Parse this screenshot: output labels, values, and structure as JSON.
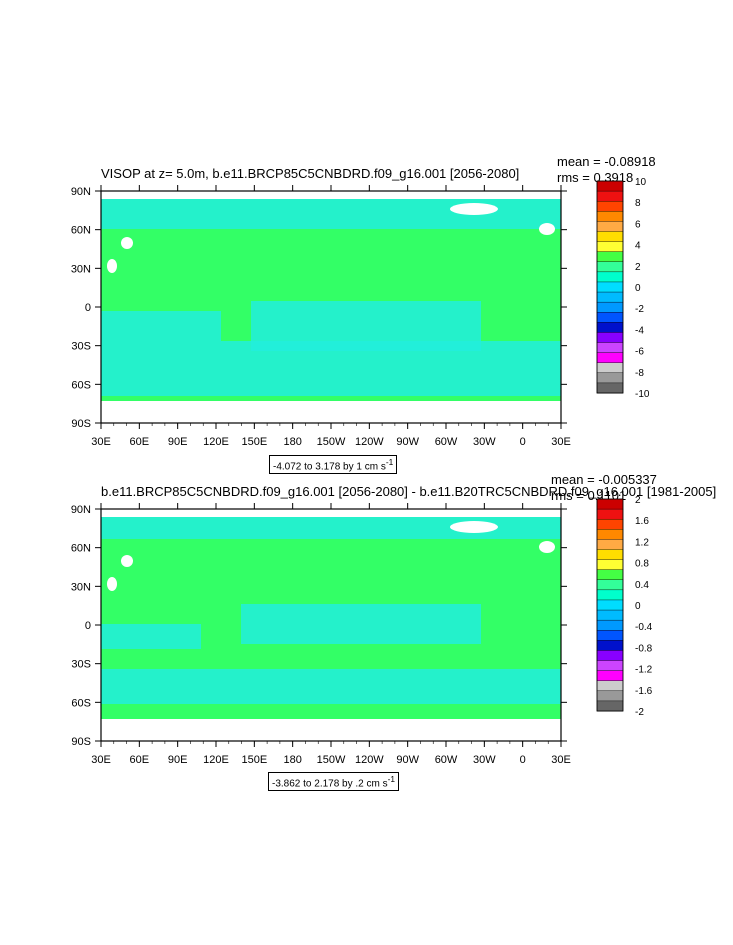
{
  "panels": [
    {
      "title": "VISOP at z=   5.0m, b.e11.BRCP85C5CNBDRD.f09_g16.001 [2056-2080]",
      "mean": "mean = -0.08918",
      "rms": "rms = 0.3918",
      "info": "-4.072 to 3.178 by 1 cm s",
      "info_sup": "-1",
      "colorbar_labels": [
        "10",
        "8",
        "6",
        "4",
        "2",
        "0",
        "-2",
        "-4",
        "-6",
        "-8",
        "-10"
      ]
    },
    {
      "title": "b.e11.BRCP85C5CNBDRD.f09_g16.001 [2056-2080] - b.e11.B20TRC5CNBDRD.f09_g16.001 [1981-2005]",
      "mean": "mean = -0.005337",
      "rms": "rms = 0.1101",
      "info": "-3.862 to 2.178 by .2 cm s",
      "info_sup": "-1",
      "colorbar_labels": [
        "2",
        "1.6",
        "1.2",
        "0.8",
        "0.4",
        "0",
        "-0.4",
        "-0.8",
        "-1.2",
        "-1.6",
        "-2"
      ]
    }
  ],
  "axes": {
    "x_ticks": [
      "30E",
      "60E",
      "90E",
      "120E",
      "150E",
      "180",
      "150W",
      "120W",
      "90W",
      "60W",
      "30W",
      "0",
      "30E"
    ],
    "y_ticks": [
      "90N",
      "60N",
      "30N",
      "0",
      "30S",
      "60S",
      "90S"
    ]
  },
  "colors": {
    "colorbar": [
      "#cc0000",
      "#ee1111",
      "#ff4400",
      "#ff8800",
      "#ffaa44",
      "#ffdd00",
      "#ffff33",
      "#44ff44",
      "#33ff99",
      "#00ffcc",
      "#00ddff",
      "#00bbff",
      "#0099ff",
      "#0055ff",
      "#0011cc",
      "#8800ff",
      "#cc44ff",
      "#ff00ff",
      "#cccccc",
      "#999999",
      "#666666"
    ],
    "ocean_main": "#33ff66",
    "ocean_cyan": "#22eedd",
    "land": "#ffffff"
  },
  "chart_data": [
    {
      "type": "heatmap",
      "title": "VISOP at z=   5.0m, b.e11.BRCP85C5CNBDRD.f09_g16.001 [2056-2080]",
      "xlabel": "",
      "ylabel": "",
      "x_range": [
        "30E",
        "30E"
      ],
      "y_range": [
        "90S",
        "90N"
      ],
      "colorbar_levels": [
        -10,
        -8,
        -6,
        -4,
        -2,
        0,
        2,
        4,
        6,
        8,
        10
      ],
      "mean": -0.08918,
      "rms": 0.3918,
      "min": -4.072,
      "max": 3.178,
      "contour_interval": 1,
      "units": "cm s-1"
    },
    {
      "type": "heatmap",
      "title": "b.e11.BRCP85C5CNBDRD.f09_g16.001 [2056-2080] - b.e11.B20TRC5CNBDRD.f09_g16.001 [1981-2005]",
      "xlabel": "",
      "ylabel": "",
      "x_range": [
        "30E",
        "30E"
      ],
      "y_range": [
        "90S",
        "90N"
      ],
      "colorbar_levels": [
        -2,
        -1.6,
        -1.2,
        -0.8,
        -0.4,
        0,
        0.4,
        0.8,
        1.2,
        1.6,
        2
      ],
      "mean": -0.005337,
      "rms": 0.1101,
      "min": -3.862,
      "max": 2.178,
      "contour_interval": 0.2,
      "units": "cm s-1"
    }
  ]
}
